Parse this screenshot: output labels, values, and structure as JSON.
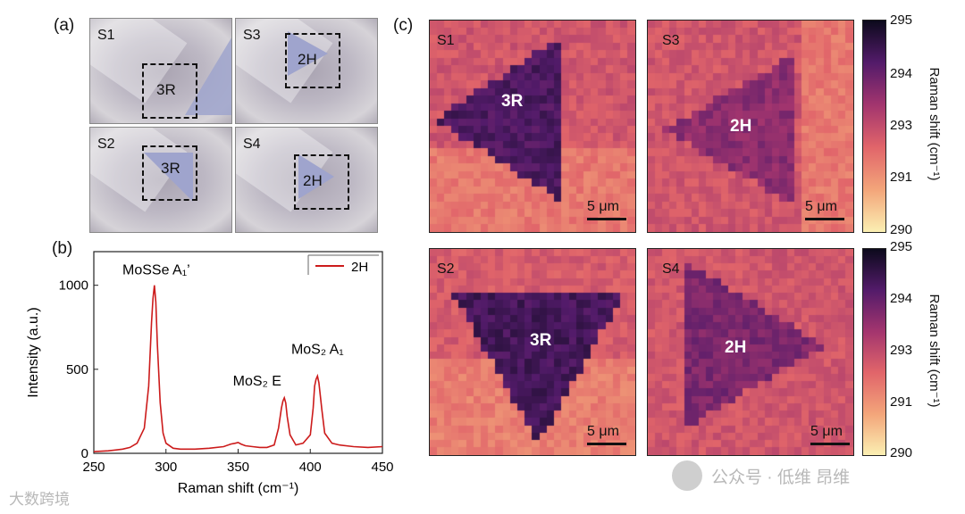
{
  "panels": {
    "a": {
      "label": "(a)",
      "images": [
        {
          "tag": "S1",
          "stack": "3R"
        },
        {
          "tag": "S3",
          "stack": "2H"
        },
        {
          "tag": "S2",
          "stack": "3R"
        },
        {
          "tag": "S4",
          "stack": "2H"
        }
      ]
    },
    "b": {
      "label": "(b)",
      "peak_labels": {
        "a1_prime": "MoSSe A₁’",
        "mos2_e": "MoS₂ E",
        "mos2_a1": "MoS₂ A₁"
      }
    },
    "c": {
      "label": "(c)",
      "scale_bar": "5 μm",
      "maps": [
        {
          "tag": "S1",
          "stack": "3R"
        },
        {
          "tag": "S3",
          "stack": "2H"
        },
        {
          "tag": "S2",
          "stack": "3R"
        },
        {
          "tag": "S4",
          "stack": "2H"
        }
      ],
      "colorbar": {
        "label": "Raman shift (cm⁻¹)",
        "ticks": [
          "295",
          "294",
          "293",
          "291",
          "290"
        ],
        "colors": [
          "#fbefb2",
          "#f3a57a",
          "#e1656a",
          "#a3356e",
          "#531b6a",
          "#0c0a1c"
        ]
      }
    }
  },
  "chart_data": {
    "type": "line",
    "xlabel": "Raman shift (cm⁻¹)",
    "ylabel": "Intensity (a.u.)",
    "xlim": [
      250,
      450
    ],
    "ylim": [
      0,
      1200
    ],
    "xticks": [
      250,
      300,
      350,
      400,
      450
    ],
    "yticks": [
      0,
      500,
      1000
    ],
    "legend": {
      "label": "2H",
      "position": "top-right"
    },
    "series": [
      {
        "name": "2H",
        "color": "#cc1b1b",
        "x": [
          250,
          260,
          270,
          275,
          280,
          285,
          288,
          290,
          291,
          292,
          293,
          294,
          296,
          298,
          300,
          305,
          310,
          320,
          330,
          340,
          345,
          348,
          350,
          352,
          355,
          360,
          365,
          370,
          375,
          378,
          380,
          381,
          382,
          383,
          384,
          386,
          390,
          395,
          400,
          402,
          403,
          404,
          405,
          406,
          408,
          410,
          415,
          420,
          430,
          440,
          450
        ],
        "y": [
          10,
          15,
          25,
          35,
          60,
          150,
          400,
          780,
          920,
          1000,
          900,
          650,
          300,
          120,
          60,
          30,
          25,
          25,
          30,
          40,
          55,
          60,
          65,
          55,
          45,
          40,
          35,
          35,
          50,
          150,
          270,
          310,
          330,
          300,
          220,
          110,
          50,
          60,
          110,
          270,
          400,
          440,
          460,
          420,
          260,
          120,
          60,
          50,
          40,
          35,
          40
        ]
      }
    ]
  },
  "footer": {
    "left": "大数跨境",
    "right": "公众号 · 低维 昂维"
  }
}
